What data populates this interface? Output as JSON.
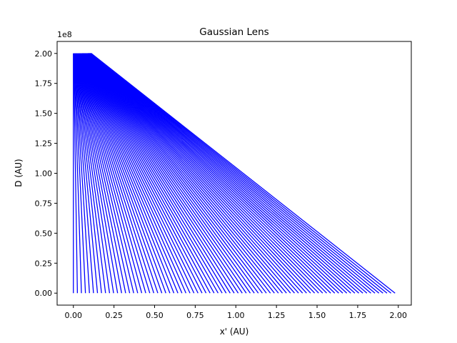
{
  "chart_data": {
    "type": "line",
    "title": "Gaussian Lens",
    "xlabel": "x' (AU)",
    "ylabel": "D (AU)",
    "y_offset_label": "1e8",
    "xlim": [
      -0.1,
      2.08
    ],
    "ylim": [
      -0.1,
      2.1
    ],
    "xticks": [
      0.0,
      0.25,
      0.5,
      0.75,
      1.0,
      1.25,
      1.5,
      1.75,
      2.0
    ],
    "xtick_labels": [
      "0.00",
      "0.25",
      "0.50",
      "0.75",
      "1.00",
      "1.25",
      "1.50",
      "1.75",
      "2.00"
    ],
    "yticks": [
      0.0,
      0.25,
      0.5,
      0.75,
      1.0,
      1.25,
      1.5,
      1.75,
      2.0
    ],
    "ytick_labels": [
      "0.00",
      "0.25",
      "0.50",
      "0.75",
      "1.00",
      "1.25",
      "1.50",
      "1.75",
      "2.00"
    ],
    "grid": false,
    "legend": "none",
    "line_color": "#0000ff",
    "ray_family": {
      "ray_count": 81,
      "top_D": 2.0,
      "bottom_D": 0.0,
      "top_x_range": [
        0.0,
        0.11
      ],
      "bottom_x_range": [
        0.0,
        1.98
      ],
      "note_shape": "each ray runs from (x_top, 2.0) to (x_bottom, 0.0)"
    }
  }
}
